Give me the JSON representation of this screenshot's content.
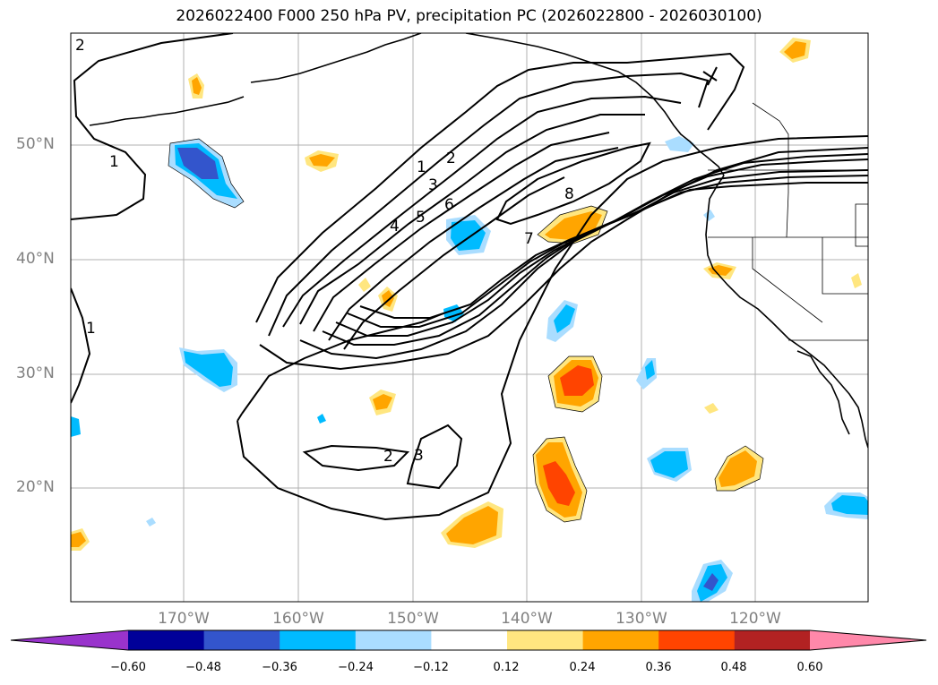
{
  "title": "2026022400 F000 250 hPa PV, precipitation PC (2026022800 - 2026030100)",
  "map": {
    "lat_labels": [
      "50°N",
      "40°N",
      "30°N",
      "20°N"
    ],
    "lon_labels": [
      "170°W",
      "160°W",
      "150°W",
      "140°W",
      "130°W",
      "120°W"
    ],
    "contour_labels": [
      "2",
      "1",
      "1",
      "1",
      "2",
      "3",
      "4",
      "5",
      "6",
      "7",
      "8",
      "2",
      "3"
    ]
  },
  "colorbar": {
    "colors": [
      "#9933cc",
      "#000099",
      "#3355cc",
      "#00bbff",
      "#aaddff",
      "#ffffff",
      "#ffe680",
      "#ffa500",
      "#ff4400",
      "#b22222",
      "#ff88aa",
      "#ff88aa"
    ],
    "tick_labels": [
      "−0.60",
      "−0.48",
      "−0.36",
      "−0.24",
      "−0.12",
      "0.12",
      "0.24",
      "0.36",
      "0.48",
      "0.60"
    ]
  }
}
